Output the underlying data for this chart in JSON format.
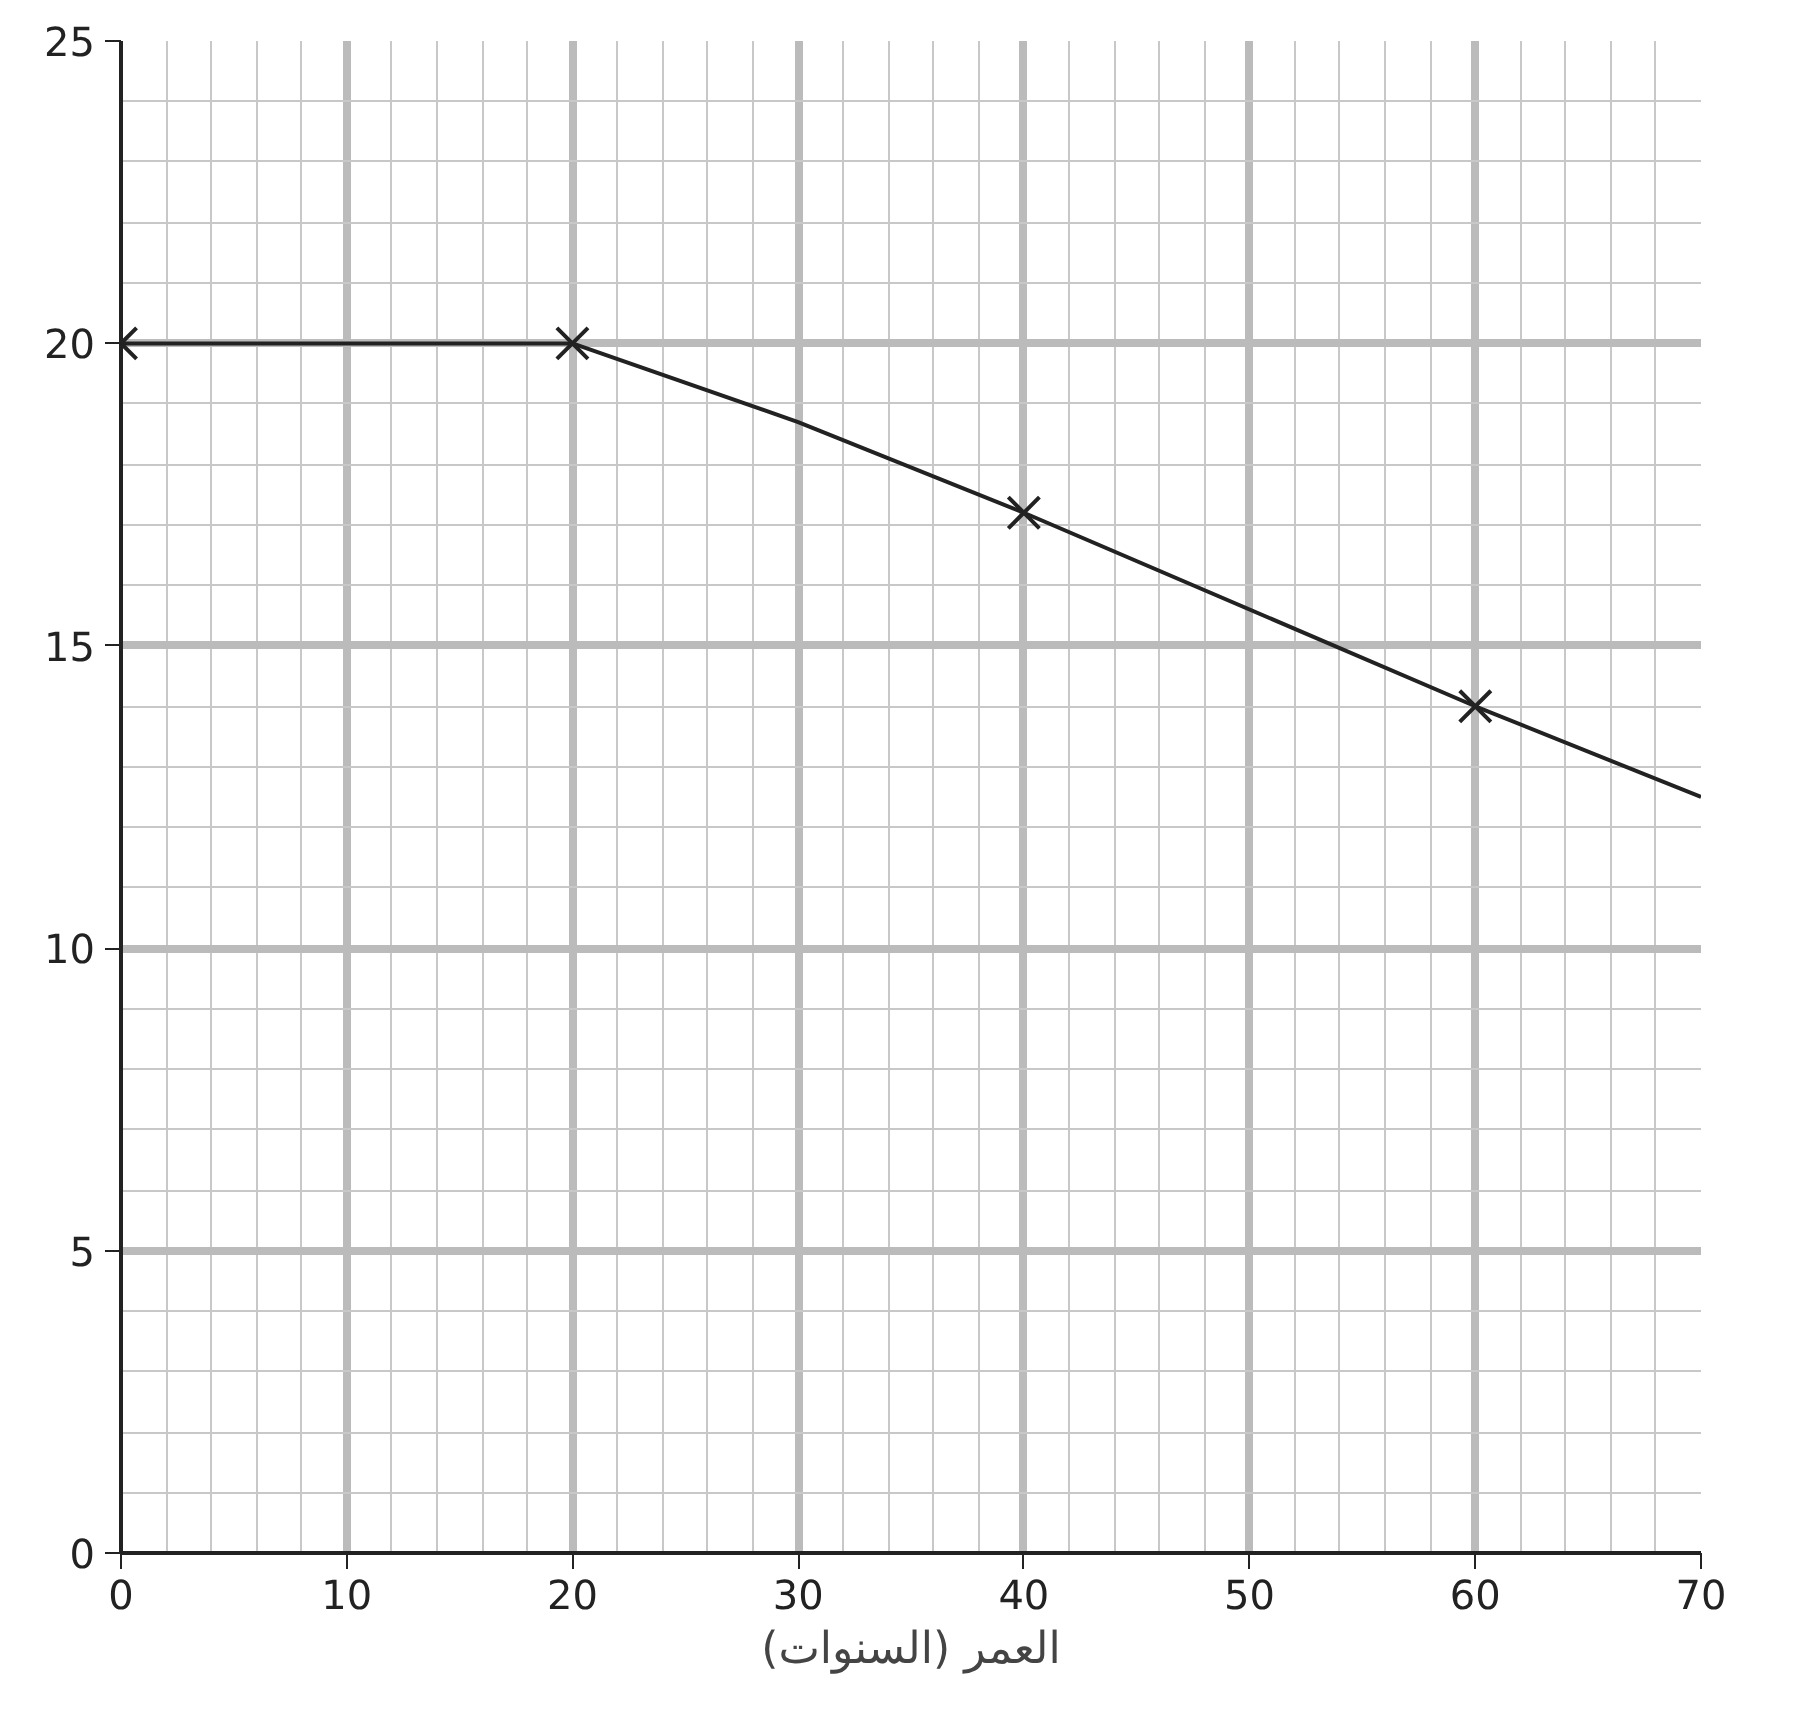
{
  "chart_data": {
    "type": "line",
    "xlabel": "العمر (السنوات)",
    "xlim": [
      0,
      70
    ],
    "xticks": [
      0,
      10,
      20,
      30,
      40,
      50,
      60,
      70
    ],
    "ylim": [
      0,
      25
    ],
    "yticks": [
      0,
      5,
      10,
      15,
      20,
      25
    ],
    "grid": true,
    "series": [
      {
        "color": "#222222",
        "marker": "none",
        "x": [
          0,
          20,
          30,
          40,
          60,
          70
        ],
        "values": [
          20,
          20,
          18.7,
          17.2,
          14,
          12.5
        ]
      },
      {
        "type": "scatter",
        "color": "#222222",
        "marker": "cross",
        "x": [
          0,
          20,
          40,
          60
        ],
        "values": [
          20,
          20,
          17.2,
          14
        ]
      }
    ]
  }
}
